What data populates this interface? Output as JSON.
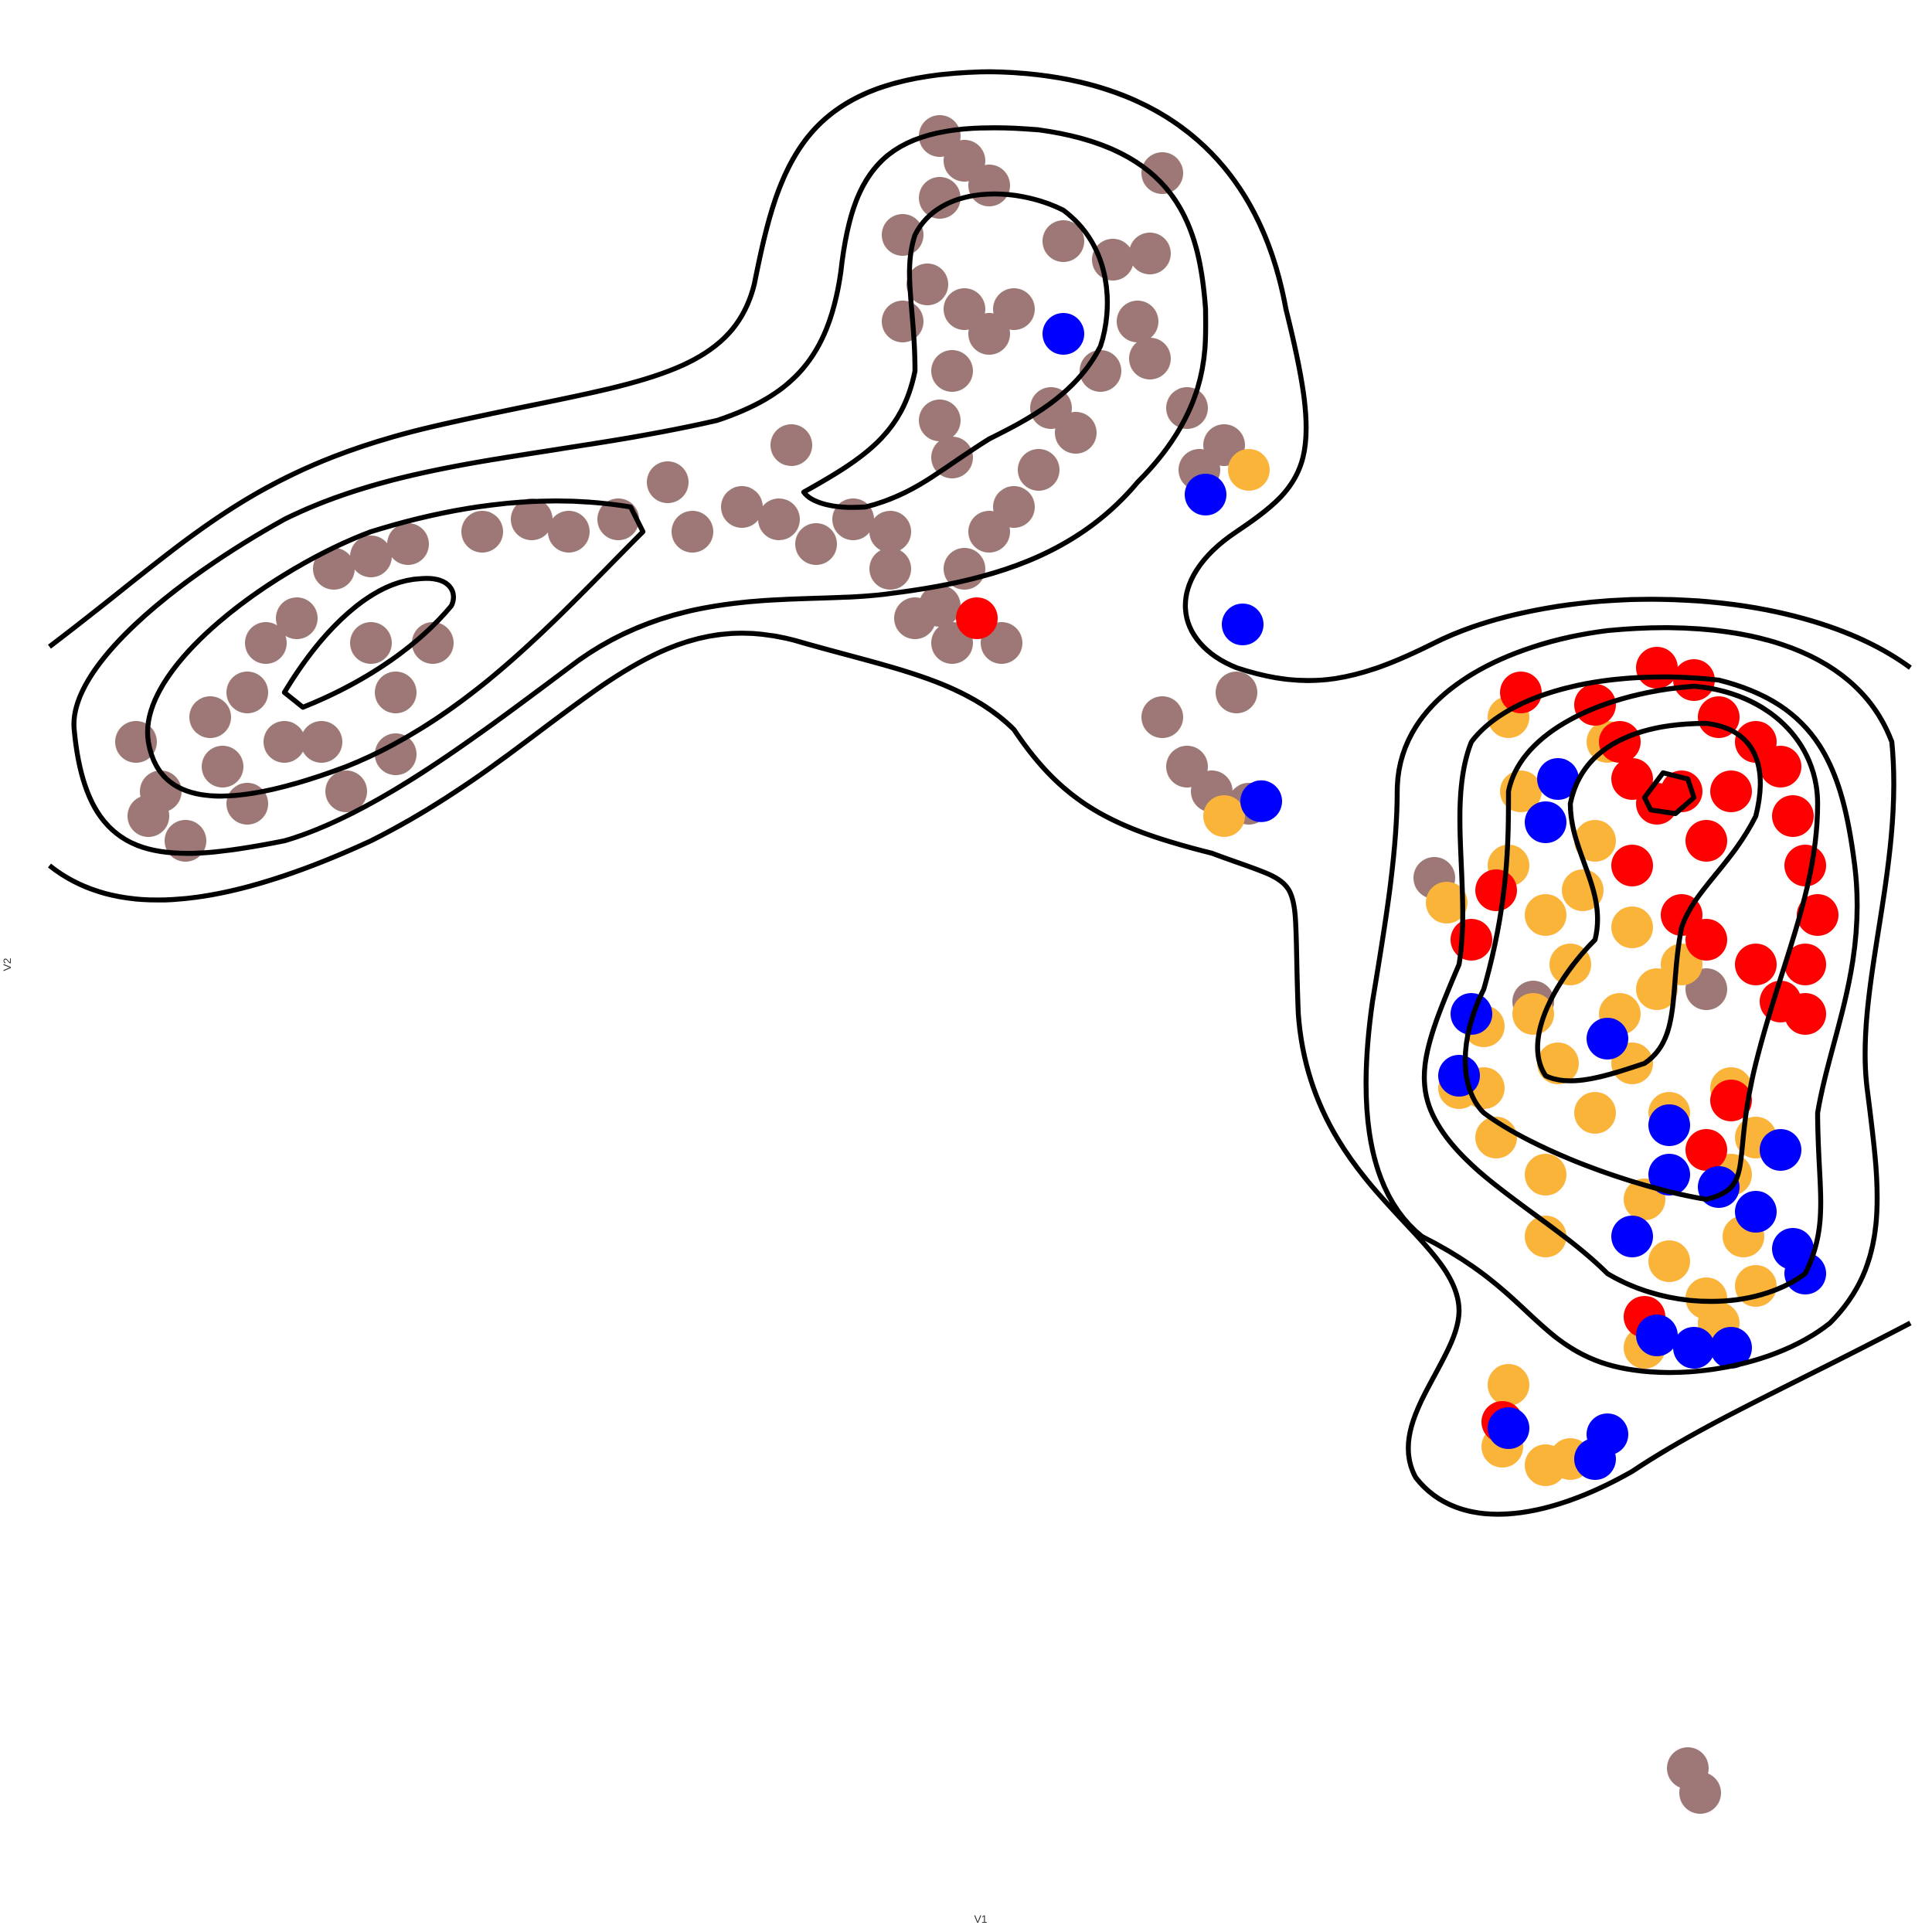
{
  "chart_data": {
    "type": "scatter",
    "x_label": "V1",
    "y_label": "V2",
    "xlim": [
      40,
      1545
    ],
    "ylim": [
      1545,
      40
    ],
    "series": [
      {
        "color": "#9e7777",
        "x": [
          110,
          130,
          150,
          120,
          170,
          200,
          215,
          240,
          270,
          300,
          330,
          260,
          230,
          300,
          320,
          320,
          350,
          280,
          200,
          180,
          390,
          430,
          460,
          500,
          540,
          560,
          600,
          630,
          640,
          660,
          690,
          720,
          720,
          760,
          780,
          760,
          730,
          750,
          780,
          800,
          730,
          770,
          760,
          770,
          800,
          820,
          860,
          900,
          930,
          940,
          920,
          930,
          890,
          850,
          870,
          840,
          820,
          800,
          780,
          760,
          740,
          770,
          810,
          960,
          990,
          970,
          940,
          960,
          980,
          1000,
          1010,
          1160,
          1240,
          1380,
          1365,
          1375
        ],
        "y": [
          600,
          640,
          680,
          660,
          580,
          560,
          520,
          500,
          460,
          450,
          440,
          600,
          600,
          520,
          560,
          610,
          520,
          640,
          650,
          620,
          430,
          420,
          430,
          420,
          390,
          430,
          410,
          420,
          360,
          440,
          420,
          430,
          460,
          110,
          130,
          160,
          190,
          230,
          250,
          270,
          260,
          300,
          340,
          370,
          150,
          250,
          195,
          210,
          205,
          140,
          260,
          290,
          300,
          330,
          350,
          380,
          410,
          430,
          460,
          490,
          500,
          520,
          520,
          330,
          360,
          380,
          580,
          620,
          640,
          560,
          650,
          710,
          810,
          800,
          1430,
          1450
        ]
      },
      {
        "color": "#fbb43a",
        "x": [
          1220,
          1230,
          1220,
          1250,
          1270,
          1240,
          1200,
          1180,
          1210,
          1250,
          1290,
          1320,
          1310,
          1340,
          1360,
          1280,
          1290,
          1320,
          1330,
          1350,
          1380,
          1410,
          1400,
          1400,
          1420,
          1330,
          1250,
          1220,
          1215,
          1250,
          1270,
          1010,
          990,
          1170,
          1300,
          1350,
          1260,
          1390,
          1200,
          1420
        ],
        "y": [
          580,
          640,
          700,
          740,
          780,
          820,
          830,
          880,
          920,
          950,
          900,
          860,
          820,
          800,
          780,
          720,
          680,
          750,
          970,
          1020,
          1050,
          1000,
          950,
          880,
          920,
          1090,
          1000,
          1120,
          1170,
          1185,
          1180,
          380,
          660,
          730,
          600,
          900,
          860,
          1070,
          880,
          1040
        ]
      },
      {
        "color": "#ff0000",
        "x": [
          1340,
          1370,
          1390,
          1420,
          1440,
          1450,
          1460,
          1470,
          1460,
          1460,
          1440,
          1420,
          1380,
          1360,
          1340,
          1320,
          1310,
          1290,
          1230,
          1400,
          1380,
          1320,
          1190,
          1210,
          1400,
          1380,
          1330,
          1215,
          790,
          1360
        ],
        "y": [
          540,
          550,
          580,
          600,
          620,
          660,
          700,
          740,
          780,
          820,
          810,
          780,
          760,
          740,
          650,
          630,
          600,
          570,
          560,
          640,
          680,
          700,
          760,
          720,
          890,
          930,
          1065,
          1150,
          500,
          640
        ]
      },
      {
        "color": "#0000ff",
        "x": [
          860,
          975,
          1005,
          1020,
          1260,
          1250,
          1190,
          1300,
          1180,
          1350,
          1390,
          1440,
          1450,
          1460,
          1420,
          1340,
          1370,
          1400,
          1290,
          1300,
          1220,
          1350,
          1320
        ],
        "y": [
          270,
          400,
          505,
          648,
          630,
          665,
          820,
          840,
          870,
          950,
          960,
          930,
          1010,
          1030,
          980,
          1080,
          1090,
          1090,
          1180,
          1160,
          1155,
          910,
          1000
        ]
      }
    ]
  }
}
